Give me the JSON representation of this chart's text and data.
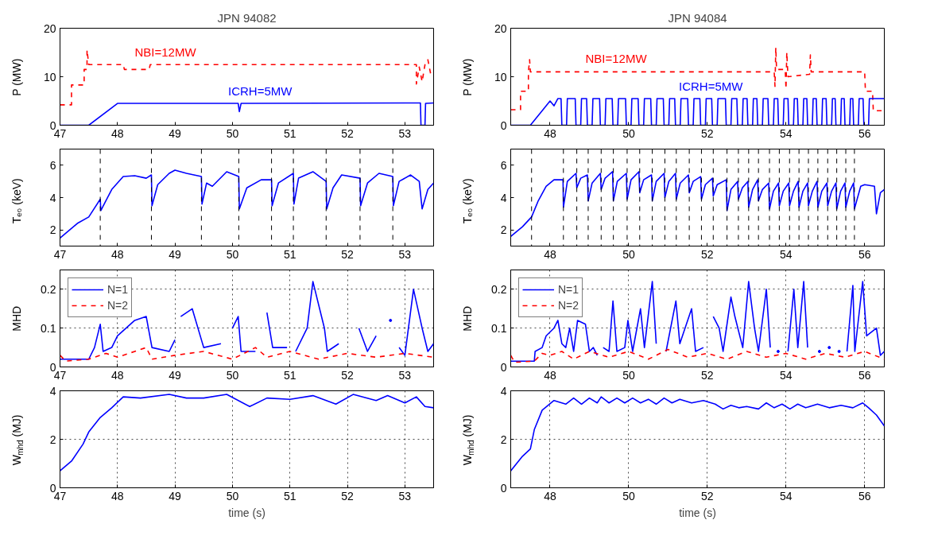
{
  "chart_data": [
    {
      "type": "line",
      "title": "JPN 94082",
      "ylabel": "P (MW)",
      "xlim": [
        47,
        53.5
      ],
      "xticks": [
        47,
        48,
        49,
        50,
        51,
        52,
        53
      ],
      "ylim": [
        0,
        20
      ],
      "yticks": [
        0,
        10,
        20
      ],
      "legend": false,
      "series": [
        {
          "name": "NBI=12MW",
          "color": "#ff0000",
          "line_style": "dashed",
          "x": [
            47,
            47.2,
            47.2,
            47.42,
            47.42,
            47.47,
            47.47,
            47.5,
            48.1,
            48.12,
            48.55,
            48.57,
            53.2,
            53.2,
            53.25,
            53.3,
            53.35,
            53.4,
            53.45,
            53.5
          ],
          "values": [
            4.2,
            4.2,
            8.3,
            8.3,
            11.5,
            11.5,
            15.5,
            12.5,
            12.5,
            11.5,
            11.5,
            12.5,
            12.5,
            8.5,
            12,
            9,
            12.5,
            13.5,
            10.5,
            10.5
          ]
        },
        {
          "name": "ICRH=5MW",
          "color": "#0000ff",
          "x": [
            47,
            47.5,
            48.0,
            50.1,
            50.12,
            50.15,
            53.27,
            53.28,
            53.35,
            53.36,
            53.5
          ],
          "values": [
            0,
            0,
            4.5,
            4.5,
            2.8,
            4.5,
            4.6,
            0,
            0,
            4.5,
            4.6
          ]
        }
      ]
    },
    {
      "type": "line",
      "title": "JPN 94084",
      "ylabel": "P (MW)",
      "xlim": [
        47,
        56.5
      ],
      "xticks": [
        48,
        50,
        52,
        54,
        56
      ],
      "ylim": [
        0,
        20
      ],
      "yticks": [
        0,
        10,
        20
      ],
      "legend": false,
      "series": [
        {
          "name": "NBI=12MW",
          "color": "#ff0000",
          "line_style": "dashed",
          "x": [
            47,
            47.25,
            47.25,
            47.45,
            47.45,
            47.48,
            47.5,
            53.7,
            53.72,
            53.74,
            53.76,
            53.98,
            54.0,
            54.02,
            54.05,
            54.6,
            54.62,
            54.64,
            56.0,
            56.02,
            56.2,
            56.22,
            56.5
          ],
          "values": [
            3.2,
            3.2,
            7,
            7,
            11,
            13.5,
            11,
            11,
            8,
            16,
            11.5,
            11.5,
            7.5,
            15,
            10,
            10.5,
            14.5,
            11,
            11,
            7,
            7,
            3,
            3
          ]
        },
        {
          "name": "ICRH=5MW",
          "color": "#0000ff",
          "x": [
            47,
            47.5,
            47.8,
            48.0,
            48.1,
            48.2,
            48.28,
            48.3,
            48.42,
            48.44,
            48.64,
            48.66,
            48.78,
            48.8,
            48.93,
            48.95,
            49.07,
            49.09,
            49.26,
            49.28,
            49.4,
            49.42,
            49.58,
            49.6,
            49.72,
            49.74,
            49.92,
            49.94,
            50.06,
            50.08,
            50.24,
            50.26,
            50.38,
            50.4,
            50.56,
            50.58,
            50.7,
            50.72,
            50.88,
            50.9,
            51.02,
            51.04,
            51.17,
            51.19,
            51.31,
            51.33,
            51.5,
            51.52,
            51.64,
            51.66,
            51.81,
            51.83,
            51.95,
            51.97,
            52.11,
            52.13,
            52.25,
            52.27,
            52.46,
            52.48,
            52.6,
            52.62,
            52.75,
            52.77,
            52.89,
            52.91,
            53.01,
            53.03,
            53.15,
            53.17,
            53.26,
            53.28,
            53.4,
            53.42,
            53.54,
            53.56,
            53.68,
            53.7,
            53.79,
            53.81,
            53.93,
            53.95,
            54.05,
            54.07,
            54.19,
            54.21,
            54.29,
            54.31,
            54.43,
            54.45,
            54.53,
            54.55,
            54.67,
            54.69,
            54.77,
            54.79,
            54.91,
            54.93,
            55.02,
            55.04,
            55.16,
            55.18,
            55.25,
            55.27,
            55.39,
            55.41,
            55.48,
            55.5,
            55.62,
            55.64,
            55.7,
            55.72,
            55.84,
            55.86,
            55.96,
            55.98,
            56.1,
            56.12,
            56.5
          ],
          "values": [
            0,
            0,
            3,
            5,
            4,
            5.5,
            5.5,
            0,
            0,
            5.5,
            5.5,
            0,
            0,
            5.5,
            5.5,
            0,
            0,
            5.5,
            5.5,
            0,
            0,
            5.5,
            5.5,
            0,
            0,
            5.5,
            5.5,
            0,
            0,
            5.5,
            5.5,
            0,
            0,
            5.5,
            5.5,
            0,
            0,
            5.5,
            5.5,
            0,
            0,
            5.5,
            5.5,
            0,
            0,
            5.5,
            5.5,
            0,
            0,
            5.5,
            5.5,
            0,
            0,
            5.5,
            5.5,
            0,
            0,
            5.5,
            5.5,
            0,
            0,
            5.5,
            5.5,
            0,
            0,
            5.5,
            5.5,
            0,
            0,
            5.5,
            5.5,
            0,
            0,
            5.5,
            5.5,
            0,
            0,
            5.5,
            5.5,
            0,
            0,
            5.5,
            5.5,
            0,
            0,
            5.5,
            5.5,
            0,
            0,
            5.5,
            5.5,
            0,
            0,
            5.5,
            5.5,
            0,
            0,
            5.5,
            5.5,
            0,
            0,
            5.5,
            5.5,
            0,
            0,
            5.5,
            5.5,
            0,
            0,
            5.5,
            5.5,
            0,
            0,
            5.5,
            5.5,
            0,
            0,
            5.5,
            5.5
          ]
        }
      ]
    },
    {
      "type": "line",
      "ylabel": "Tₑ₀ (keV)",
      "xlim": [
        47,
        53.5
      ],
      "xticks": [
        47,
        48,
        49,
        50,
        51,
        52,
        53
      ],
      "ylim": [
        1,
        7
      ],
      "yticks": [
        2,
        4,
        6
      ],
      "series": [
        {
          "color": "#0000ff",
          "x": [
            47,
            47.3,
            47.5,
            47.7,
            47.71,
            47.9,
            48.1,
            48.3,
            48.5,
            48.59,
            48.6,
            48.7,
            48.9,
            49.0,
            49.2,
            49.46,
            49.47,
            49.55,
            49.65,
            49.9,
            50.11,
            50.12,
            50.25,
            50.5,
            50.68,
            50.69,
            50.8,
            51.06,
            51.07,
            51.15,
            51.4,
            51.63,
            51.64,
            51.75,
            51.9,
            52.22,
            52.23,
            52.35,
            52.55,
            52.79,
            52.8,
            52.9,
            53.1,
            53.25,
            53.3,
            53.4,
            53.5
          ],
          "values": [
            1.5,
            2.4,
            2.8,
            3.9,
            3.2,
            4.5,
            5.3,
            5.35,
            5.2,
            5.4,
            3.5,
            4.8,
            5.5,
            5.7,
            5.5,
            5.3,
            3.6,
            4.9,
            4.7,
            5.6,
            5.3,
            3.3,
            4.6,
            5.1,
            5.1,
            3.5,
            4.9,
            5.5,
            3.6,
            5.2,
            5.6,
            5.0,
            3.3,
            4.6,
            5.4,
            5.2,
            3.5,
            4.9,
            5.5,
            5.3,
            3.5,
            5.0,
            5.4,
            5.0,
            3.3,
            4.5,
            4.9
          ]
        }
      ],
      "ref_lines": [
        {
          "axis": "x",
          "value": 47.7,
          "color": "#000000",
          "line_style": "dashed"
        },
        {
          "axis": "x",
          "value": 48.59,
          "color": "#000000",
          "line_style": "dashed"
        },
        {
          "axis": "x",
          "value": 49.46,
          "color": "#000000",
          "line_style": "dashed"
        },
        {
          "axis": "x",
          "value": 50.11,
          "color": "#000000",
          "line_style": "dashed"
        },
        {
          "axis": "x",
          "value": 50.68,
          "color": "#000000",
          "line_style": "dashed"
        },
        {
          "axis": "x",
          "value": 51.06,
          "color": "#000000",
          "line_style": "dashed"
        },
        {
          "axis": "x",
          "value": 51.63,
          "color": "#000000",
          "line_style": "dashed"
        },
        {
          "axis": "x",
          "value": 52.22,
          "color": "#000000",
          "line_style": "dashed"
        },
        {
          "axis": "x",
          "value": 52.79,
          "color": "#000000",
          "line_style": "dashed"
        }
      ]
    },
    {
      "type": "line",
      "ylabel": "Tₑ₀ (keV)",
      "xlim": [
        47,
        56.5
      ],
      "xticks": [
        48,
        50,
        52,
        54,
        56
      ],
      "ylim": [
        1,
        7
      ],
      "yticks": [
        2,
        4,
        6
      ],
      "series": [
        {
          "color": "#0000ff",
          "x": [
            47,
            47.3,
            47.53,
            47.7,
            47.9,
            48.1,
            48.33,
            48.34,
            48.44,
            48.66,
            48.68,
            48.78,
            48.95,
            48.97,
            49.07,
            49.28,
            49.3,
            49.4,
            49.59,
            49.61,
            49.71,
            49.94,
            49.96,
            50.06,
            50.26,
            50.28,
            50.38,
            50.58,
            50.6,
            50.7,
            50.9,
            50.92,
            51.02,
            51.19,
            51.21,
            51.31,
            51.52,
            51.54,
            51.64,
            51.83,
            51.85,
            51.95,
            52.13,
            52.15,
            52.25,
            52.48,
            52.5,
            52.6,
            52.77,
            52.79,
            52.89,
            53.03,
            53.05,
            53.15,
            53.28,
            53.3,
            53.4,
            53.56,
            53.58,
            53.68,
            53.81,
            53.83,
            53.93,
            54.07,
            54.09,
            54.19,
            54.31,
            54.33,
            54.43,
            54.55,
            54.57,
            54.67,
            54.79,
            54.81,
            54.91,
            55.04,
            55.06,
            55.16,
            55.27,
            55.29,
            55.39,
            55.5,
            55.52,
            55.62,
            55.72,
            55.74,
            55.9,
            56.0,
            56.25,
            56.3,
            56.4,
            56.5
          ],
          "values": [
            1.6,
            2.2,
            2.8,
            3.8,
            4.7,
            5.1,
            5.1,
            3.4,
            5.0,
            5.5,
            4.6,
            5.2,
            5.4,
            3.8,
            4.9,
            5.5,
            4.5,
            5.2,
            5.6,
            3.8,
            5.0,
            5.5,
            3.9,
            5.1,
            5.6,
            4.3,
            5.1,
            5.4,
            3.8,
            5.0,
            5.5,
            4.0,
            5.0,
            5.5,
            3.9,
            4.9,
            5.4,
            4.3,
            5.0,
            5.3,
            3.9,
            4.8,
            5.2,
            4.1,
            4.8,
            5.1,
            3.2,
            4.5,
            5.0,
            3.9,
            4.6,
            5.0,
            3.4,
            4.5,
            5.1,
            3.8,
            4.5,
            4.9,
            3.3,
            4.4,
            4.9,
            3.5,
            4.4,
            4.9,
            3.5,
            4.4,
            5.0,
            3.4,
            4.4,
            4.9,
            3.5,
            4.4,
            5.0,
            3.4,
            4.4,
            4.9,
            3.5,
            4.4,
            4.9,
            3.3,
            4.4,
            4.9,
            3.4,
            4.4,
            4.9,
            3.3,
            4.7,
            4.8,
            4.7,
            3.0,
            4.3,
            4.5
          ]
        }
      ],
      "ref_lines": [
        {
          "axis": "x",
          "value": 47.53,
          "color": "#000000",
          "line_style": "dashed"
        },
        {
          "axis": "x",
          "value": 48.34,
          "color": "#000000",
          "line_style": "dashed"
        },
        {
          "axis": "x",
          "value": 48.68,
          "color": "#000000",
          "line_style": "dashed"
        },
        {
          "axis": "x",
          "value": 48.97,
          "color": "#000000",
          "line_style": "dashed"
        },
        {
          "axis": "x",
          "value": 49.3,
          "color": "#000000",
          "line_style": "dashed"
        },
        {
          "axis": "x",
          "value": 49.61,
          "color": "#000000",
          "line_style": "dashed"
        },
        {
          "axis": "x",
          "value": 49.96,
          "color": "#000000",
          "line_style": "dashed"
        },
        {
          "axis": "x",
          "value": 50.28,
          "color": "#000000",
          "line_style": "dashed"
        },
        {
          "axis": "x",
          "value": 50.6,
          "color": "#000000",
          "line_style": "dashed"
        },
        {
          "axis": "x",
          "value": 50.92,
          "color": "#000000",
          "line_style": "dashed"
        },
        {
          "axis": "x",
          "value": 51.21,
          "color": "#000000",
          "line_style": "dashed"
        },
        {
          "axis": "x",
          "value": 51.54,
          "color": "#000000",
          "line_style": "dashed"
        },
        {
          "axis": "x",
          "value": 51.85,
          "color": "#000000",
          "line_style": "dashed"
        },
        {
          "axis": "x",
          "value": 52.15,
          "color": "#000000",
          "line_style": "dashed"
        },
        {
          "axis": "x",
          "value": 52.5,
          "color": "#000000",
          "line_style": "dashed"
        },
        {
          "axis": "x",
          "value": 52.79,
          "color": "#000000",
          "line_style": "dashed"
        },
        {
          "axis": "x",
          "value": 53.05,
          "color": "#000000",
          "line_style": "dashed"
        },
        {
          "axis": "x",
          "value": 53.3,
          "color": "#000000",
          "line_style": "dashed"
        },
        {
          "axis": "x",
          "value": 53.58,
          "color": "#000000",
          "line_style": "dashed"
        },
        {
          "axis": "x",
          "value": 53.83,
          "color": "#000000",
          "line_style": "dashed"
        },
        {
          "axis": "x",
          "value": 54.09,
          "color": "#000000",
          "line_style": "dashed"
        },
        {
          "axis": "x",
          "value": 54.33,
          "color": "#000000",
          "line_style": "dashed"
        },
        {
          "axis": "x",
          "value": 54.57,
          "color": "#000000",
          "line_style": "dashed"
        },
        {
          "axis": "x",
          "value": 54.81,
          "color": "#000000",
          "line_style": "dashed"
        },
        {
          "axis": "x",
          "value": 55.06,
          "color": "#000000",
          "line_style": "dashed"
        },
        {
          "axis": "x",
          "value": 55.29,
          "color": "#000000",
          "line_style": "dashed"
        },
        {
          "axis": "x",
          "value": 55.52,
          "color": "#000000",
          "line_style": "dashed"
        },
        {
          "axis": "x",
          "value": 55.74,
          "color": "#000000",
          "line_style": "dashed"
        }
      ]
    },
    {
      "type": "line",
      "ylabel": "MHD",
      "xlim": [
        47,
        53.5
      ],
      "xticks": [
        47,
        48,
        49,
        50,
        51,
        52,
        53
      ],
      "ylim": [
        0,
        0.25
      ],
      "yticks": [
        0,
        0.1,
        0.2
      ],
      "grid": true,
      "legend": "top left",
      "series": [
        {
          "name": "N=1",
          "color": "#0000ff",
          "x": [
            47,
            47.5,
            47.6,
            47.7,
            47.75,
            47.9,
            48.0,
            48.3,
            48.5,
            48.6,
            48.9,
            49.0,
            49.03,
            49.1,
            49.3,
            49.5,
            49.8,
            49.92,
            50.0,
            50.1,
            50.15,
            50.4,
            50.47,
            50.6,
            50.7,
            50.95,
            51.02,
            51.1,
            51.3,
            51.4,
            51.6,
            51.65,
            51.85,
            52.05,
            52.2,
            52.35,
            52.5,
            52.6,
            52.75,
            52.8,
            52.9,
            53.0,
            53.15,
            53.3,
            53.4,
            53.5
          ],
          "values": [
            0.02,
            0.02,
            0.05,
            0.11,
            0.04,
            0.05,
            0.08,
            0.12,
            0.13,
            0.05,
            0.04,
            0.07,
            null,
            0.13,
            0.15,
            0.05,
            0.06,
            null,
            0.1,
            0.13,
            0.04,
            0.04,
            null,
            0.14,
            0.05,
            0.05,
            null,
            0.04,
            0.1,
            0.22,
            0.1,
            0.04,
            0.06,
            null,
            0.1,
            0.04,
            0.08,
            null,
            0.12,
            null,
            0.05,
            0.03,
            0.2,
            0.1,
            0.04,
            0.06
          ]
        },
        {
          "name": "N=2",
          "color": "#ff0000",
          "line_style": "dashed",
          "x": [
            47,
            47.1,
            47.5,
            47.8,
            48.0,
            48.5,
            48.6,
            49.0,
            49.5,
            50.0,
            50.4,
            50.6,
            51.0,
            51.5,
            52.0,
            52.5,
            53.0,
            53.5
          ],
          "values": [
            0.03,
            0.015,
            0.02,
            0.035,
            0.025,
            0.05,
            0.02,
            0.03,
            0.04,
            0.02,
            0.05,
            0.025,
            0.04,
            0.02,
            0.035,
            0.025,
            0.035,
            0.025
          ]
        }
      ]
    },
    {
      "type": "line",
      "ylabel": "MHD",
      "xlim": [
        47,
        56.5
      ],
      "xticks": [
        48,
        50,
        52,
        54,
        56
      ],
      "ylim": [
        0,
        0.25
      ],
      "yticks": [
        0,
        0.1,
        0.2
      ],
      "grid": true,
      "legend": "top left",
      "series": [
        {
          "name": "N=1",
          "color": "#0000ff",
          "x": [
            47,
            47.6,
            47.62,
            47.8,
            47.9,
            48.1,
            48.2,
            48.3,
            48.4,
            48.5,
            48.6,
            48.7,
            48.9,
            49.0,
            49.1,
            49.2,
            49.3,
            49.35,
            49.5,
            49.6,
            49.7,
            49.9,
            49.98,
            50.1,
            50.3,
            50.4,
            50.6,
            50.7,
            50.9,
            50.95,
            51.2,
            51.3,
            51.6,
            51.7,
            51.9,
            52.05,
            52.15,
            52.3,
            52.4,
            52.6,
            52.7,
            52.9,
            53.05,
            53.2,
            53.3,
            53.5,
            53.6,
            53.75,
            53.8,
            54.0,
            54.05,
            54.2,
            54.3,
            54.45,
            54.55,
            54.8,
            54.85,
            55.05,
            55.1,
            55.3,
            55.35,
            55.5,
            55.55,
            55.7,
            55.75,
            55.95,
            56.05,
            56.3,
            56.4,
            56.5
          ],
          "values": [
            0.015,
            0.015,
            0.04,
            0.05,
            0.08,
            0.1,
            0.12,
            0.06,
            0.05,
            0.1,
            0.04,
            0.12,
            0.11,
            0.04,
            0.05,
            0.03,
            null,
            0.05,
            0.04,
            0.17,
            0.04,
            0.05,
            0.12,
            0.04,
            0.15,
            0.05,
            0.22,
            0.06,
            null,
            0.04,
            0.17,
            0.06,
            0.15,
            0.04,
            0.05,
            null,
            0.13,
            0.1,
            0.04,
            0.18,
            0.13,
            0.05,
            0.22,
            0.1,
            0.04,
            0.2,
            0.05,
            null,
            0.04,
            null,
            0.04,
            0.2,
            0.05,
            0.22,
            0.05,
            null,
            0.04,
            null,
            0.05,
            null,
            0.04,
            null,
            0.04,
            0.21,
            0.04,
            0.22,
            0.08,
            0.1,
            0.03,
            0.04
          ]
        },
        {
          "name": "N=2",
          "color": "#ff0000",
          "line_style": "dashed",
          "x": [
            47,
            47.1,
            47.6,
            47.8,
            48.0,
            48.3,
            48.6,
            49.0,
            49.5,
            50.0,
            50.5,
            51.0,
            51.5,
            52.0,
            52.5,
            53.0,
            53.5,
            54.0,
            54.5,
            55.0,
            55.5,
            56.0,
            56.5
          ],
          "values": [
            0.03,
            0.012,
            0.015,
            0.035,
            0.03,
            0.04,
            0.02,
            0.04,
            0.025,
            0.04,
            0.02,
            0.045,
            0.025,
            0.035,
            0.02,
            0.04,
            0.025,
            0.035,
            0.02,
            0.035,
            0.025,
            0.04,
            0.02
          ]
        }
      ]
    },
    {
      "type": "line",
      "xlabel": "time (s)",
      "ylabel": "W$_{mhd}$ (MJ)",
      "xlim": [
        47,
        53.5
      ],
      "xticks": [
        47,
        48,
        49,
        50,
        51,
        52,
        53
      ],
      "ylim": [
        0,
        4
      ],
      "yticks": [
        0,
        2,
        4
      ],
      "grid": true,
      "series": [
        {
          "color": "#0000ff",
          "x": [
            47,
            47.2,
            47.4,
            47.5,
            47.7,
            47.9,
            48.1,
            48.4,
            48.9,
            49.2,
            49.5,
            49.9,
            50.3,
            50.6,
            51.0,
            51.4,
            51.8,
            52.1,
            52.5,
            52.7,
            53.0,
            53.2,
            53.35,
            53.5
          ],
          "values": [
            0.7,
            1.1,
            1.8,
            2.3,
            2.9,
            3.3,
            3.75,
            3.7,
            3.85,
            3.7,
            3.7,
            3.85,
            3.35,
            3.7,
            3.65,
            3.8,
            3.45,
            3.85,
            3.6,
            3.8,
            3.5,
            3.75,
            3.35,
            3.3
          ]
        }
      ]
    },
    {
      "type": "line",
      "xlabel": "time (s)",
      "ylabel": "W$_{mhd}$ (MJ)",
      "xlim": [
        47,
        56.5
      ],
      "xticks": [
        48,
        50,
        52,
        54,
        56
      ],
      "ylim": [
        0,
        4
      ],
      "yticks": [
        0,
        2,
        4
      ],
      "grid": true,
      "series": [
        {
          "color": "#0000ff",
          "x": [
            47,
            47.3,
            47.5,
            47.6,
            47.8,
            48.1,
            48.4,
            48.6,
            48.8,
            49.0,
            49.2,
            49.3,
            49.5,
            49.7,
            49.9,
            50.1,
            50.3,
            50.5,
            50.7,
            50.9,
            51.1,
            51.3,
            51.6,
            51.9,
            52.2,
            52.4,
            52.6,
            52.8,
            53.0,
            53.3,
            53.5,
            53.7,
            53.9,
            54.1,
            54.3,
            54.5,
            54.8,
            55.1,
            55.4,
            55.7,
            55.95,
            56.1,
            56.3,
            56.5
          ],
          "values": [
            0.7,
            1.3,
            1.6,
            2.4,
            3.2,
            3.6,
            3.45,
            3.7,
            3.45,
            3.7,
            3.5,
            3.75,
            3.5,
            3.7,
            3.5,
            3.7,
            3.5,
            3.65,
            3.45,
            3.7,
            3.5,
            3.65,
            3.5,
            3.6,
            3.45,
            3.25,
            3.4,
            3.3,
            3.35,
            3.25,
            3.5,
            3.3,
            3.45,
            3.25,
            3.45,
            3.3,
            3.45,
            3.3,
            3.4,
            3.3,
            3.5,
            3.3,
            3.0,
            2.55
          ]
        }
      ]
    }
  ]
}
